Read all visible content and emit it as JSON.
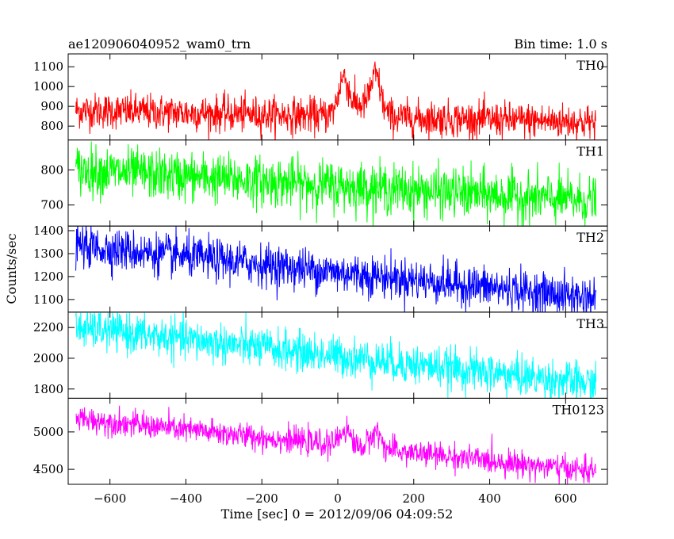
{
  "chart_data": {
    "type": "line",
    "title_left": "ae120906040952_wam0_trn",
    "title_right": "Bin time: 1.0 s",
    "xlabel": "Time [sec] 0 = 2012/09/06 04:09:52",
    "ylabel": "Counts/sec",
    "xlim": [
      -710,
      710
    ],
    "x_ticks": [
      -600,
      -400,
      -200,
      0,
      200,
      400,
      600
    ],
    "x_range": [
      -690,
      680
    ],
    "grid": false,
    "panels": [
      {
        "name": "TH0",
        "color": "#ff0000",
        "ylim": [
          730,
          1165
        ],
        "y_ticks": [
          800,
          900,
          1000,
          1100
        ],
        "start": 880,
        "end": 820,
        "noise": 45,
        "bursts": [
          {
            "center": 15,
            "width": 18,
            "amp": 170
          },
          {
            "center": 100,
            "width": 18,
            "amp": 175
          },
          {
            "center": 60,
            "width": 55,
            "amp": 60
          }
        ]
      },
      {
        "name": "TH1",
        "color": "#00ff00",
        "ylim": [
          640,
          885
        ],
        "y_ticks": [
          700,
          800
        ],
        "start": 800,
        "end": 710,
        "noise": 35,
        "bursts": []
      },
      {
        "name": "TH2",
        "color": "#0000ff",
        "ylim": [
          1045,
          1420
        ],
        "y_ticks": [
          1100,
          1200,
          1300,
          1400
        ],
        "start": 1335,
        "end": 1105,
        "noise": 45,
        "bursts": []
      },
      {
        "name": "TH3",
        "color": "#00ffff",
        "ylim": [
          1740,
          2300
        ],
        "y_ticks": [
          1800,
          2000,
          2200
        ],
        "start": 2200,
        "end": 1830,
        "noise": 65,
        "bursts": []
      },
      {
        "name": "TH0123",
        "color": "#ff00ff",
        "ylim": [
          4300,
          5450
        ],
        "y_ticks": [
          4500,
          5000
        ],
        "start": 5180,
        "end": 4470,
        "noise": 85,
        "bursts": [
          {
            "center": 20,
            "width": 20,
            "amp": 220
          },
          {
            "center": 100,
            "width": 20,
            "amp": 230
          }
        ]
      }
    ]
  }
}
